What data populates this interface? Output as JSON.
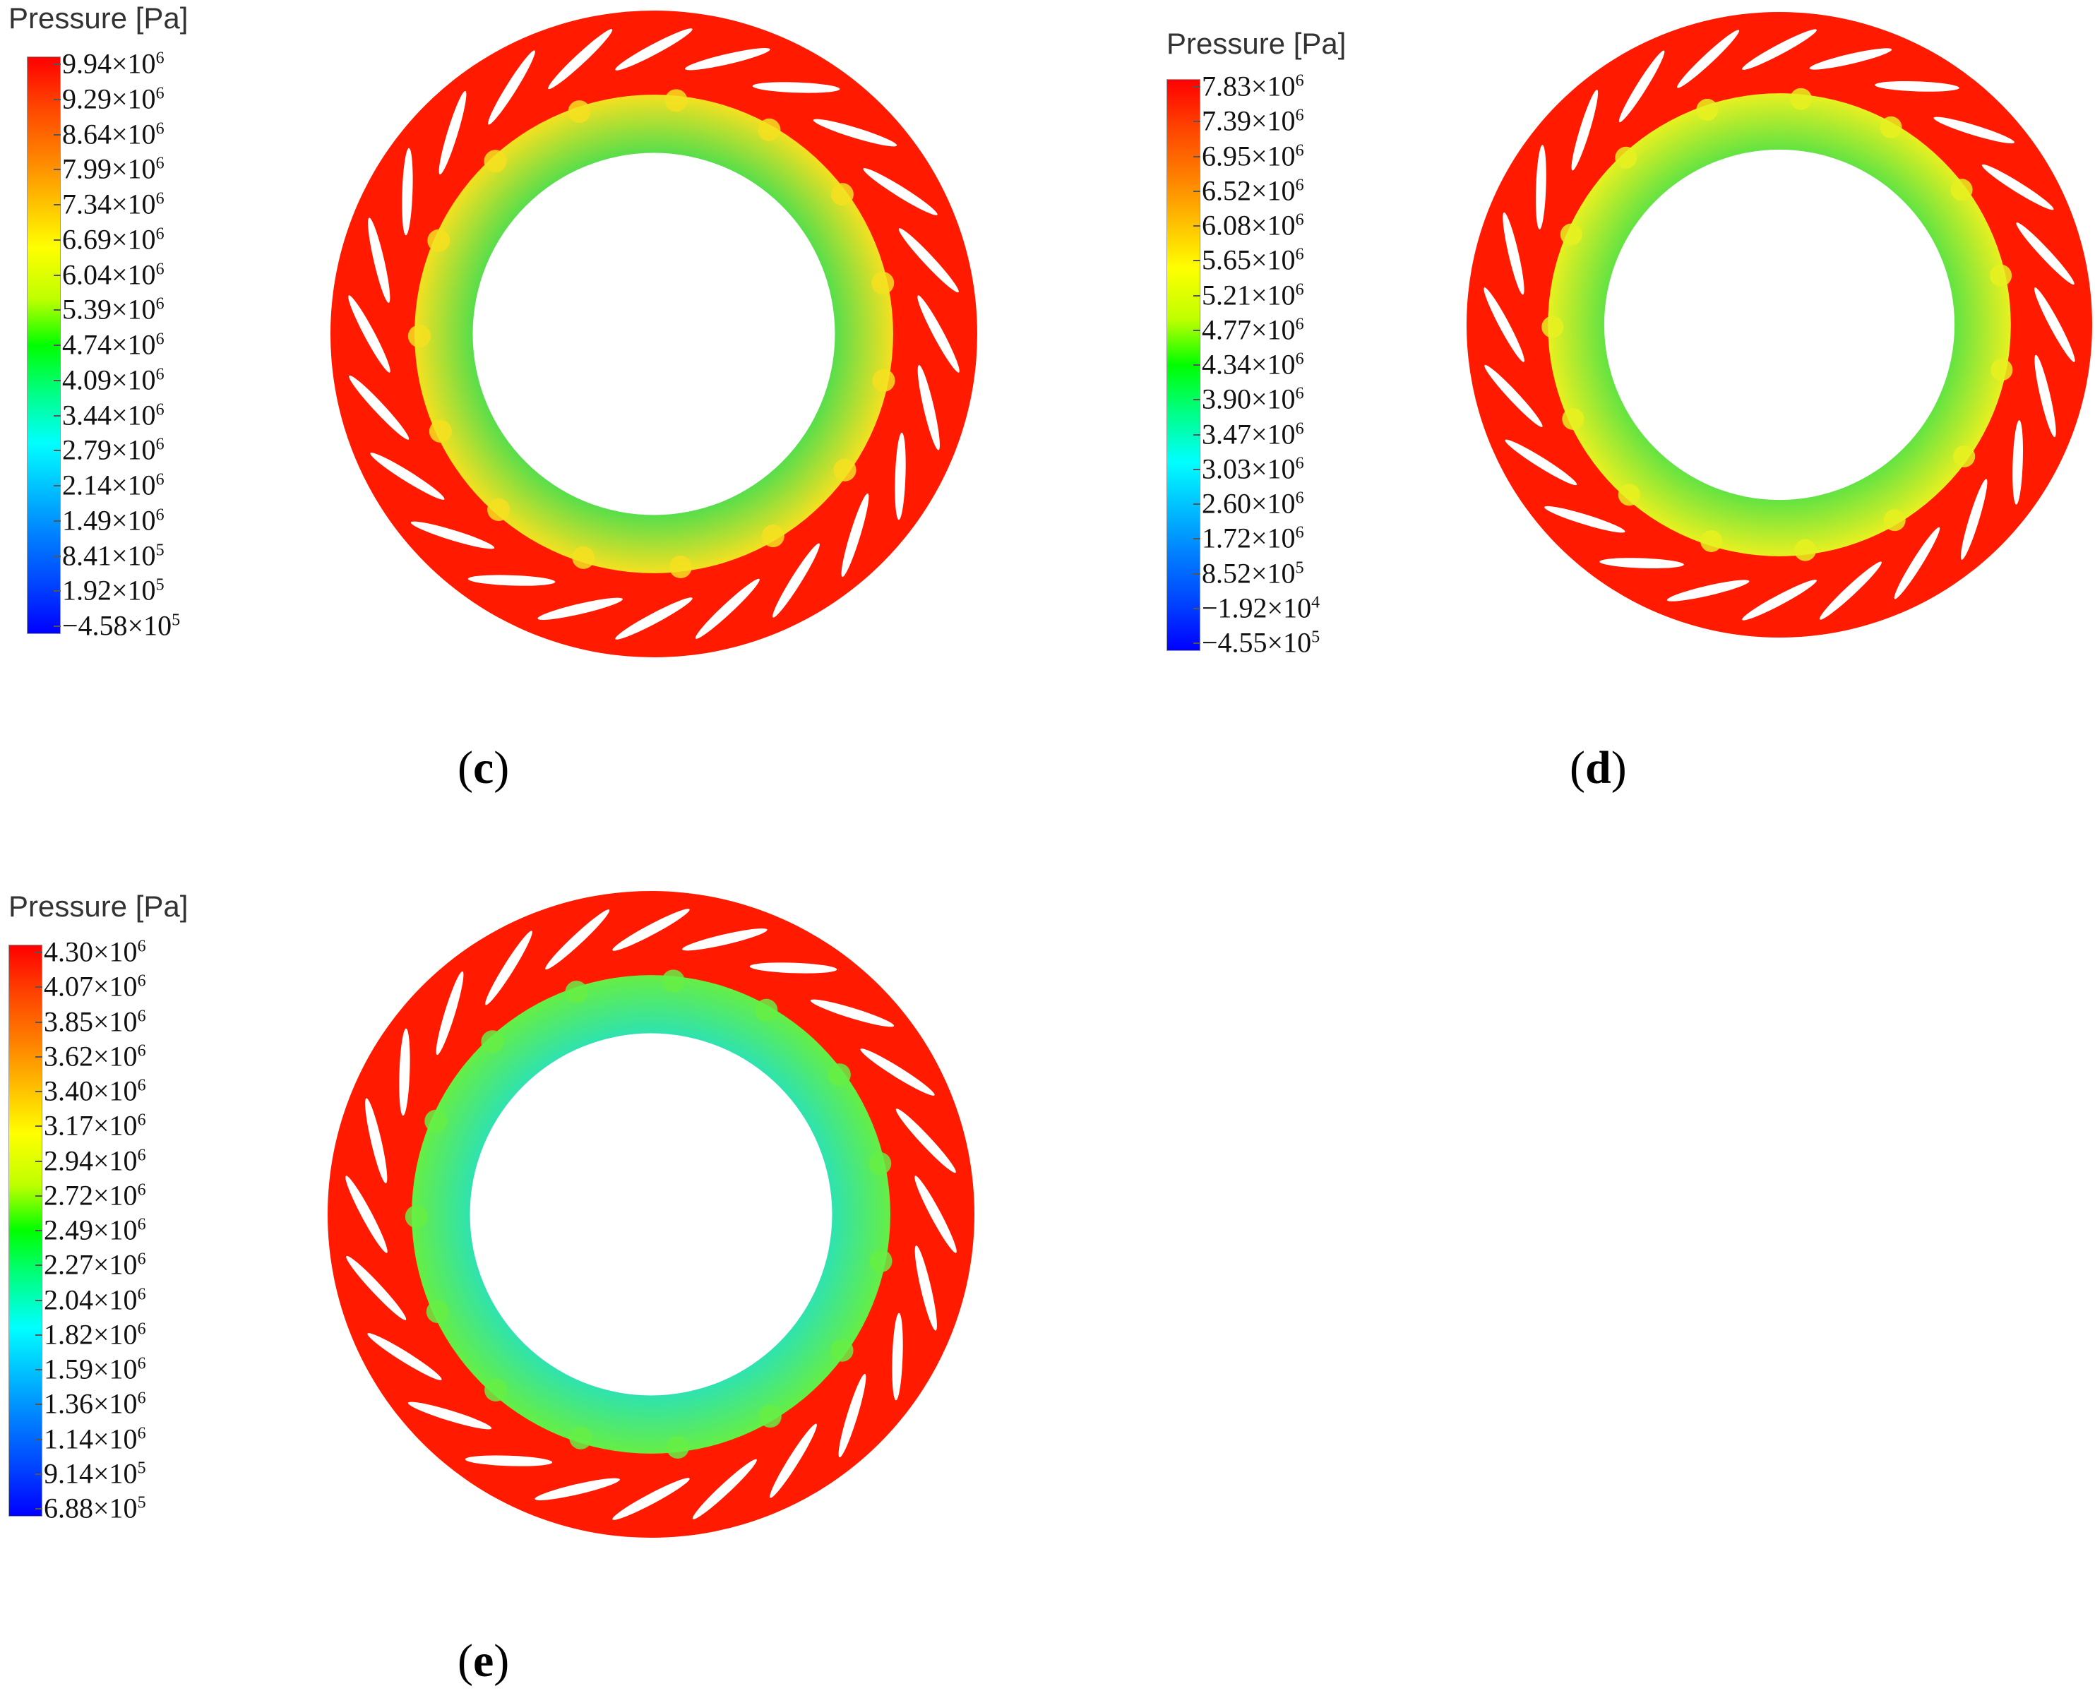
{
  "panels": [
    {
      "id": "c",
      "label": "(c)",
      "letter": "c",
      "colorbar": {
        "title": "Pressure [Pa]",
        "labels": [
          {
            "m": "9.94×10",
            "e": "6"
          },
          {
            "m": "9.29×10",
            "e": "6"
          },
          {
            "m": "8.64×10",
            "e": "6"
          },
          {
            "m": "7.99×10",
            "e": "6"
          },
          {
            "m": "7.34×10",
            "e": "6"
          },
          {
            "m": "6.69×10",
            "e": "6"
          },
          {
            "m": "6.04×10",
            "e": "6"
          },
          {
            "m": "5.39×10",
            "e": "6"
          },
          {
            "m": "4.74×10",
            "e": "6"
          },
          {
            "m": "4.09×10",
            "e": "6"
          },
          {
            "m": "3.44×10",
            "e": "6"
          },
          {
            "m": "2.79×10",
            "e": "6"
          },
          {
            "m": "2.14×10",
            "e": "6"
          },
          {
            "m": "1.49×10",
            "e": "6"
          },
          {
            "m": "8.41×10",
            "e": "5"
          },
          {
            "m": "1.92×10",
            "e": "5"
          },
          {
            "m": "−4.58×10",
            "e": "5"
          }
        ]
      },
      "colors": {
        "outer": "#ff1a00",
        "inner_base": "#33dd55",
        "hub_hot": "#f5e020"
      }
    },
    {
      "id": "d",
      "label": "(d)",
      "letter": "d",
      "colorbar": {
        "title": "Pressure [Pa]",
        "labels": [
          {
            "m": "7.83×10",
            "e": "6"
          },
          {
            "m": "7.39×10",
            "e": "6"
          },
          {
            "m": "6.95×10",
            "e": "6"
          },
          {
            "m": "6.52×10",
            "e": "6"
          },
          {
            "m": "6.08×10",
            "e": "6"
          },
          {
            "m": "5.65×10",
            "e": "6"
          },
          {
            "m": "5.21×10",
            "e": "6"
          },
          {
            "m": "4.77×10",
            "e": "6"
          },
          {
            "m": "4.34×10",
            "e": "6"
          },
          {
            "m": "3.90×10",
            "e": "6"
          },
          {
            "m": "3.47×10",
            "e": "6"
          },
          {
            "m": "3.03×10",
            "e": "6"
          },
          {
            "m": "2.60×10",
            "e": "6"
          },
          {
            "m": "1.72×10",
            "e": "6"
          },
          {
            "m": "8.52×10",
            "e": "5"
          },
          {
            "m": "−1.92×10",
            "e": "4"
          },
          {
            "m": "−4.55×10",
            "e": "5"
          }
        ]
      },
      "colors": {
        "outer": "#ff1a00",
        "inner_base": "#44e04a",
        "hub_hot": "#e8f020"
      }
    },
    {
      "id": "e",
      "label": "(e)",
      "letter": "e",
      "colorbar": {
        "title": "Pressure [Pa]",
        "labels": [
          {
            "m": "4.30×10",
            "e": "6"
          },
          {
            "m": "4.07×10",
            "e": "6"
          },
          {
            "m": "3.85×10",
            "e": "6"
          },
          {
            "m": "3.62×10",
            "e": "6"
          },
          {
            "m": "3.40×10",
            "e": "6"
          },
          {
            "m": "3.17×10",
            "e": "6"
          },
          {
            "m": "2.94×10",
            "e": "6"
          },
          {
            "m": "2.72×10",
            "e": "6"
          },
          {
            "m": "2.49×10",
            "e": "6"
          },
          {
            "m": "2.27×10",
            "e": "6"
          },
          {
            "m": "2.04×10",
            "e": "6"
          },
          {
            "m": "1.82×10",
            "e": "6"
          },
          {
            "m": "1.59×10",
            "e": "6"
          },
          {
            "m": "1.36×10",
            "e": "6"
          },
          {
            "m": "1.14×10",
            "e": "6"
          },
          {
            "m": "9.14×10",
            "e": "5"
          },
          {
            "m": "6.88×10",
            "e": "5"
          }
        ]
      },
      "colors": {
        "outer": "#ff1a00",
        "inner_base": "#22e0c8",
        "hub_hot": "#66ee44"
      }
    }
  ]
}
